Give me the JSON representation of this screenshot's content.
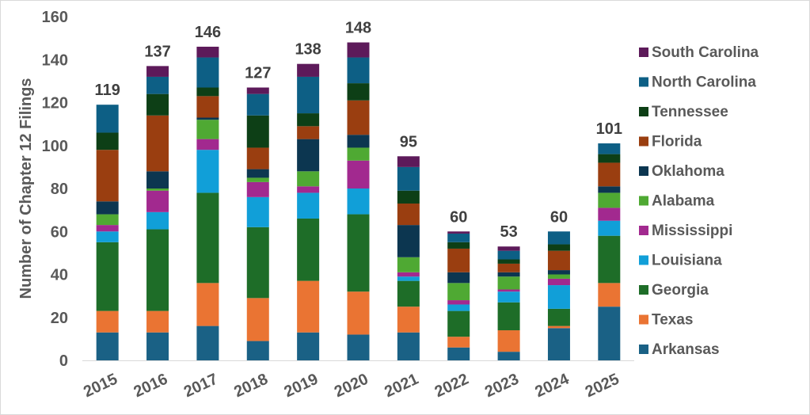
{
  "chart_data": {
    "type": "bar",
    "stacked": true,
    "title": "",
    "xlabel": "",
    "ylabel": "Number of Chapter 12 Filings",
    "ylim": [
      0,
      160
    ],
    "yticks": [
      0,
      20,
      40,
      60,
      80,
      100,
      120,
      140,
      160
    ],
    "grid": false,
    "legend_position": "right",
    "categories": [
      "2015",
      "2016",
      "2017",
      "2018",
      "2019",
      "2020",
      "2021",
      "2022",
      "2023",
      "2024",
      "2025"
    ],
    "totals": [
      119,
      137,
      146,
      127,
      138,
      148,
      95,
      60,
      53,
      60,
      101
    ],
    "series": [
      {
        "name": "Arkansas",
        "color": "#1a6185",
        "values": [
          13,
          13,
          16,
          9,
          13,
          12,
          13,
          6,
          4,
          15,
          25
        ]
      },
      {
        "name": "Texas",
        "color": "#ea7433",
        "values": [
          10,
          10,
          20,
          20,
          24,
          20,
          12,
          5,
          10,
          1,
          11
        ]
      },
      {
        "name": "Georgia",
        "color": "#1e6d28",
        "values": [
          32,
          38,
          42,
          33,
          29,
          36,
          12,
          12,
          13,
          8,
          22
        ]
      },
      {
        "name": "Louisiana",
        "color": "#119fd8",
        "values": [
          5,
          8,
          20,
          14,
          12,
          12,
          2,
          3,
          5,
          11,
          7
        ]
      },
      {
        "name": "Mississippi",
        "color": "#a2298f",
        "values": [
          3,
          10,
          5,
          7,
          3,
          13,
          2,
          2,
          1,
          3,
          6
        ]
      },
      {
        "name": "Alabama",
        "color": "#4fa933",
        "values": [
          5,
          1,
          9,
          2,
          7,
          6,
          7,
          8,
          6,
          2,
          7
        ]
      },
      {
        "name": "Oklahoma",
        "color": "#0c3650",
        "values": [
          6,
          8,
          1,
          4,
          15,
          6,
          15,
          5,
          2,
          2,
          3
        ]
      },
      {
        "name": "Florida",
        "color": "#9a3e10",
        "values": [
          24,
          26,
          10,
          10,
          6,
          16,
          10,
          11,
          4,
          9,
          11
        ]
      },
      {
        "name": "Tennessee",
        "color": "#0d3f16",
        "values": [
          8,
          10,
          4,
          15,
          6,
          8,
          6,
          3,
          2,
          3,
          4
        ]
      },
      {
        "name": "North Carolina",
        "color": "#0d5f85",
        "values": [
          13,
          8,
          14,
          10,
          17,
          12,
          11,
          4,
          4,
          6,
          5
        ]
      },
      {
        "name": "South Carolina",
        "color": "#5d1a5a",
        "values": [
          0,
          5,
          5,
          3,
          6,
          7,
          5,
          1,
          2,
          0,
          0
        ]
      }
    ],
    "legend_order": [
      "South Carolina",
      "North Carolina",
      "Tennessee",
      "Florida",
      "Oklahoma",
      "Alabama",
      "Mississippi",
      "Louisiana",
      "Georgia",
      "Texas",
      "Arkansas"
    ]
  }
}
